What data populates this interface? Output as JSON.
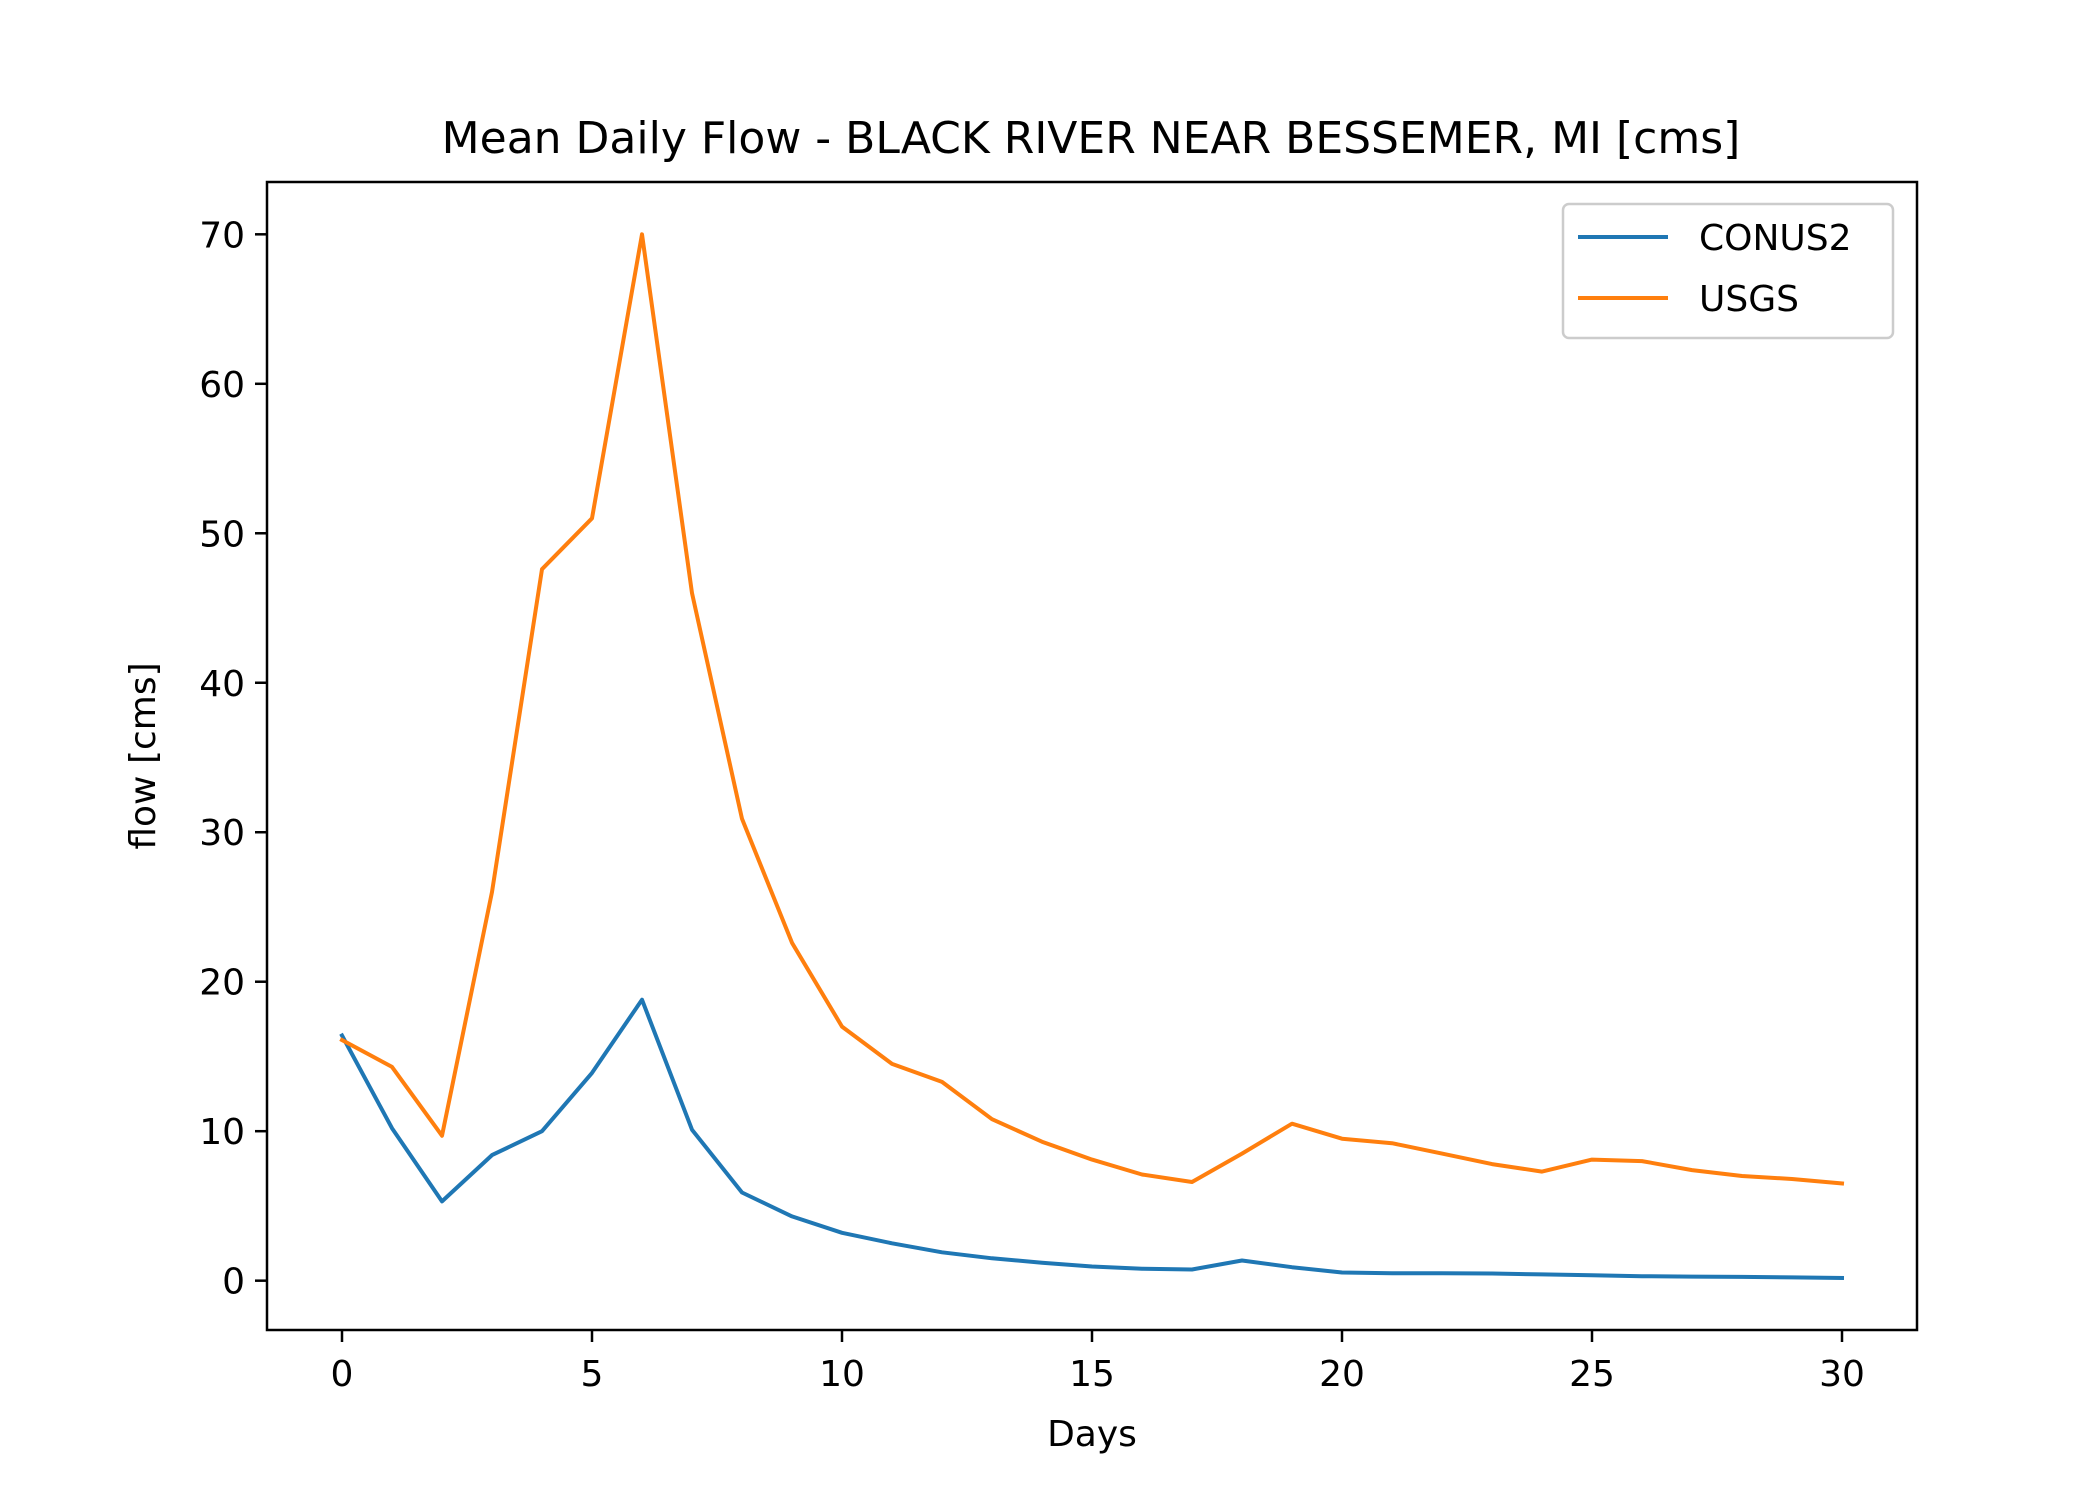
{
  "chart_data": {
    "type": "line",
    "title": "Mean Daily Flow - BLACK RIVER NEAR BESSEMER, MI [cms]",
    "xlabel": "Days",
    "ylabel": "flow [cms]",
    "xlim": [
      -1.5,
      31.5
    ],
    "ylim": [
      -3.3,
      73.5
    ],
    "xticks": [
      0,
      5,
      10,
      15,
      20,
      25,
      30
    ],
    "yticks": [
      0,
      10,
      20,
      30,
      40,
      50,
      60,
      70
    ],
    "grid": false,
    "legend_position": "top-right",
    "x": [
      0,
      1,
      2,
      3,
      4,
      5,
      6,
      7,
      8,
      9,
      10,
      11,
      12,
      13,
      14,
      15,
      16,
      17,
      18,
      19,
      20,
      21,
      22,
      23,
      24,
      25,
      26,
      27,
      28,
      29,
      30
    ],
    "series": [
      {
        "name": "CONUS2",
        "color": "#1f77b4",
        "values": [
          16.4,
          10.2,
          5.3,
          8.4,
          10.0,
          13.9,
          18.8,
          10.1,
          5.9,
          4.3,
          3.2,
          2.5,
          1.9,
          1.5,
          1.2,
          0.95,
          0.8,
          0.75,
          1.35,
          0.9,
          0.55,
          0.5,
          0.5,
          0.48,
          0.42,
          0.36,
          0.3,
          0.27,
          0.25,
          0.22,
          0.18
        ]
      },
      {
        "name": "USGS",
        "color": "#ff7f0e",
        "values": [
          16.1,
          14.3,
          9.7,
          26.0,
          47.6,
          51.0,
          70.0,
          46.0,
          30.9,
          22.6,
          17.0,
          14.5,
          13.3,
          10.8,
          9.3,
          8.1,
          7.1,
          6.6,
          8.5,
          10.5,
          9.5,
          9.2,
          8.5,
          7.8,
          7.3,
          8.1,
          8.0,
          7.4,
          7.0,
          6.8,
          6.5
        ]
      }
    ]
  }
}
